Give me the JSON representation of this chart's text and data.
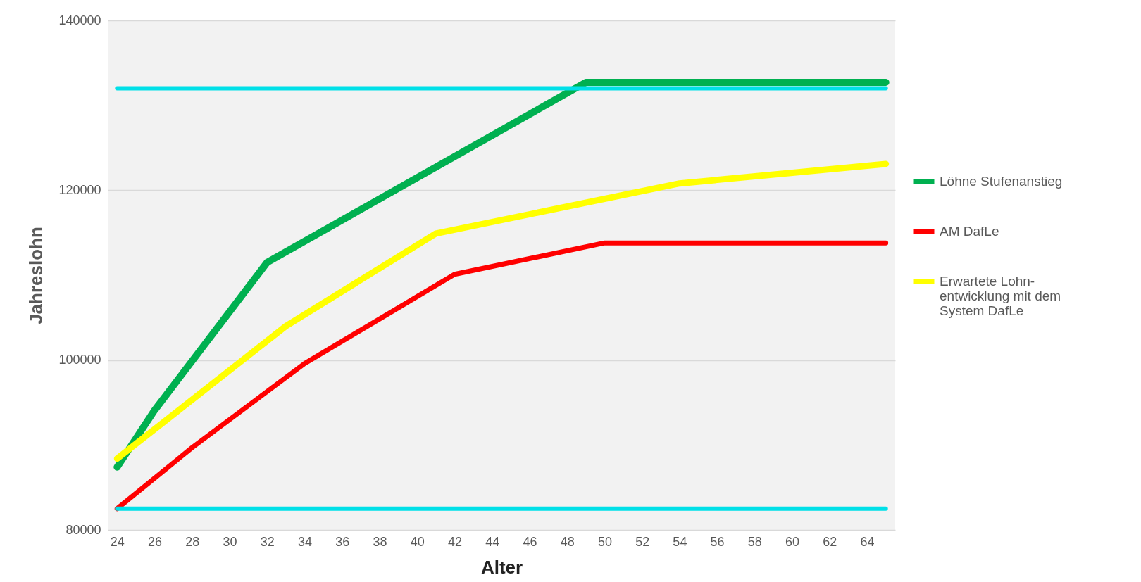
{
  "chart_data": {
    "type": "line",
    "xlabel": "Alter",
    "ylabel": "Jahreslohn",
    "xlim": [
      23.5,
      65.5
    ],
    "xticks": [
      24,
      26,
      28,
      30,
      32,
      34,
      36,
      38,
      40,
      42,
      44,
      46,
      48,
      50,
      52,
      54,
      56,
      58,
      60,
      62,
      64
    ],
    "ylim": [
      80000,
      140000
    ],
    "yticks": [
      80000,
      100000,
      120000,
      140000
    ],
    "grid": "y",
    "legend": "right",
    "marker": "none",
    "line_style": "solid",
    "series": [
      {
        "name": "Löhne Stufenanstieg",
        "color": "#00b050",
        "x": [
          24,
          26,
          32,
          49,
          65
        ],
        "values": [
          87400,
          94100,
          111500,
          132700,
          132700
        ]
      },
      {
        "name": "AM DafLe",
        "color": "#ff0000",
        "x": [
          24,
          28,
          34,
          42,
          50,
          65
        ],
        "values": [
          82500,
          89700,
          99600,
          110100,
          113800,
          113800
        ]
      },
      {
        "name": "Erwartete Lohn-entwicklung mit dem System DafLe",
        "color": "#ffff00",
        "x": [
          24,
          33,
          41,
          54,
          65
        ],
        "values": [
          88400,
          104000,
          114900,
          120800,
          123100
        ]
      },
      {
        "color": "#00e0e8",
        "x": [
          24,
          65
        ],
        "values": [
          132000,
          132000
        ]
      },
      {
        "color": "#00e0e8",
        "x": [
          24,
          65
        ],
        "values": [
          82500,
          82500
        ]
      }
    ]
  }
}
